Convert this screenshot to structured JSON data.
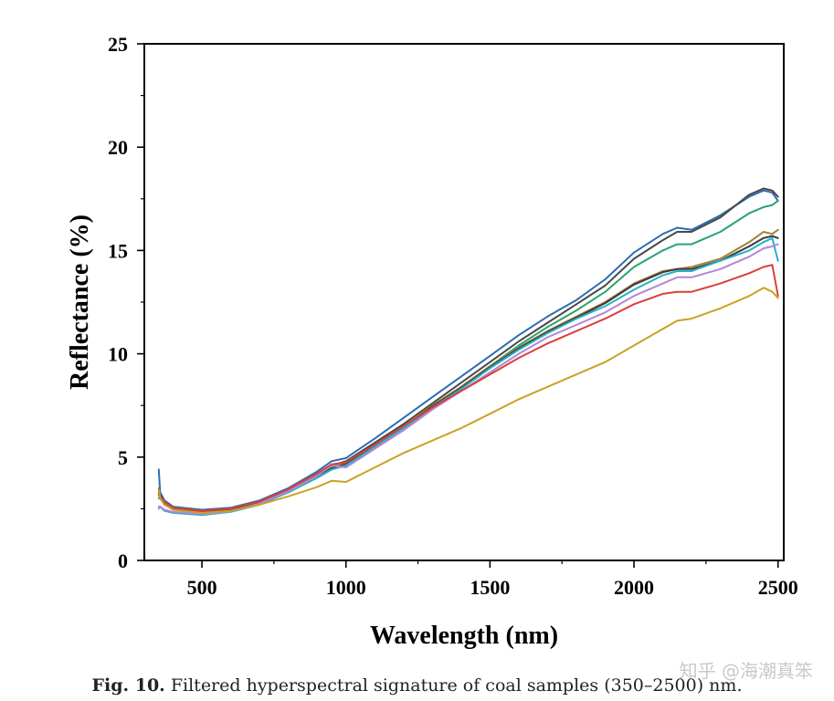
{
  "caption": {
    "label": "Fig. 10.",
    "text": "Filtered hyperspectral signature of coal samples (350–2500) nm."
  },
  "watermark": "知乎 @海潮真笨",
  "chart_data": {
    "type": "line",
    "title": "",
    "xlabel": "Wavelength (nm)",
    "ylabel": "Reflectance (%)",
    "xlim": [
      300,
      2520
    ],
    "ylim": [
      0,
      25
    ],
    "xticks": [
      500,
      1000,
      1500,
      2000,
      2500
    ],
    "yticks": [
      0,
      5,
      10,
      15,
      20,
      25
    ],
    "grid": false,
    "legend": "none",
    "series": [
      {
        "color": "#2a6db5",
        "x": [
          350,
          355,
          370,
          400,
          500,
          600,
          700,
          800,
          900,
          950,
          1000,
          1100,
          1200,
          1300,
          1400,
          1500,
          1600,
          1700,
          1800,
          1900,
          2000,
          2100,
          2150,
          2200,
          2300,
          2400,
          2450,
          2480,
          2500
        ],
        "y": [
          4.4,
          3.3,
          2.9,
          2.6,
          2.45,
          2.55,
          2.9,
          3.5,
          4.3,
          4.8,
          4.95,
          5.9,
          6.9,
          7.9,
          8.9,
          9.9,
          10.9,
          11.8,
          12.6,
          13.6,
          14.9,
          15.8,
          16.1,
          16.0,
          16.7,
          17.6,
          17.9,
          17.8,
          17.4
        ]
      },
      {
        "color": "#4a4a4a",
        "x": [
          350,
          355,
          370,
          400,
          500,
          600,
          700,
          800,
          900,
          950,
          1000,
          1100,
          1200,
          1300,
          1400,
          1500,
          1600,
          1700,
          1800,
          1900,
          2000,
          2100,
          2150,
          2200,
          2300,
          2400,
          2450,
          2480,
          2500
        ],
        "y": [
          3.4,
          3.2,
          2.8,
          2.55,
          2.4,
          2.5,
          2.85,
          3.4,
          4.2,
          4.6,
          4.8,
          5.7,
          6.6,
          7.6,
          8.6,
          9.6,
          10.6,
          11.5,
          12.4,
          13.3,
          14.6,
          15.5,
          15.9,
          15.9,
          16.6,
          17.7,
          18.0,
          17.9,
          17.6
        ]
      },
      {
        "color": "#2aa36f",
        "x": [
          350,
          355,
          370,
          400,
          500,
          600,
          700,
          800,
          900,
          950,
          1000,
          1100,
          1200,
          1300,
          1400,
          1500,
          1600,
          1700,
          1800,
          1900,
          2000,
          2100,
          2150,
          2200,
          2300,
          2400,
          2450,
          2480,
          2500
        ],
        "y": [
          3.0,
          3.0,
          2.7,
          2.5,
          2.35,
          2.45,
          2.8,
          3.3,
          4.0,
          4.4,
          4.6,
          5.5,
          6.4,
          7.4,
          8.4,
          9.4,
          10.4,
          11.3,
          12.1,
          13.0,
          14.2,
          15.0,
          15.3,
          15.3,
          15.9,
          16.8,
          17.1,
          17.2,
          17.4
        ]
      },
      {
        "color": "#a2813a",
        "x": [
          350,
          355,
          370,
          400,
          500,
          600,
          700,
          800,
          900,
          950,
          1000,
          1100,
          1200,
          1300,
          1400,
          1500,
          1600,
          1700,
          1800,
          1900,
          2000,
          2100,
          2150,
          2200,
          2300,
          2400,
          2450,
          2480,
          2500
        ],
        "y": [
          3.5,
          3.1,
          2.8,
          2.55,
          2.4,
          2.5,
          2.85,
          3.4,
          4.1,
          4.5,
          4.7,
          5.6,
          6.5,
          7.5,
          8.4,
          9.4,
          10.3,
          11.1,
          11.8,
          12.5,
          13.4,
          14.0,
          14.1,
          14.2,
          14.6,
          15.4,
          15.9,
          15.8,
          16.0
        ]
      },
      {
        "color": "#3a3a3a",
        "x": [
          350,
          355,
          370,
          400,
          500,
          600,
          700,
          800,
          900,
          950,
          1000,
          1100,
          1200,
          1300,
          1400,
          1500,
          1600,
          1700,
          1800,
          1900,
          2000,
          2100,
          2150,
          2200,
          2300,
          2400,
          2450,
          2480,
          2500
        ],
        "y": [
          3.2,
          3.0,
          2.75,
          2.5,
          2.38,
          2.48,
          2.82,
          3.35,
          4.05,
          4.45,
          4.65,
          5.55,
          6.45,
          7.45,
          8.35,
          9.35,
          10.25,
          11.05,
          11.75,
          12.45,
          13.35,
          13.95,
          14.1,
          14.1,
          14.5,
          15.2,
          15.6,
          15.7,
          15.6
        ]
      },
      {
        "color": "#27b0c8",
        "x": [
          350,
          355,
          370,
          400,
          500,
          600,
          700,
          800,
          900,
          950,
          1000,
          1100,
          1200,
          1300,
          1400,
          1500,
          1600,
          1700,
          1800,
          1900,
          2000,
          2100,
          2150,
          2200,
          2300,
          2400,
          2450,
          2480,
          2500
        ],
        "y": [
          2.6,
          2.6,
          2.4,
          2.3,
          2.2,
          2.35,
          2.7,
          3.3,
          4.0,
          4.4,
          4.6,
          5.5,
          6.4,
          7.4,
          8.3,
          9.3,
          10.2,
          11.0,
          11.7,
          12.3,
          13.1,
          13.8,
          14.0,
          14.0,
          14.5,
          15.0,
          15.4,
          15.6,
          14.5
        ]
      },
      {
        "color": "#b487d6",
        "x": [
          350,
          355,
          370,
          400,
          500,
          600,
          700,
          800,
          900,
          950,
          1000,
          1100,
          1200,
          1300,
          1400,
          1500,
          1600,
          1700,
          1800,
          1900,
          2000,
          2100,
          2150,
          2200,
          2300,
          2400,
          2450,
          2480,
          2500
        ],
        "y": [
          2.5,
          2.6,
          2.45,
          2.35,
          2.25,
          2.38,
          2.75,
          3.35,
          4.1,
          4.6,
          4.5,
          5.4,
          6.3,
          7.3,
          8.2,
          9.1,
          10.0,
          10.8,
          11.4,
          12.0,
          12.8,
          13.4,
          13.7,
          13.7,
          14.1,
          14.7,
          15.1,
          15.2,
          15.3
        ]
      },
      {
        "color": "#d9403b",
        "x": [
          350,
          355,
          370,
          400,
          500,
          600,
          700,
          800,
          900,
          950,
          1000,
          1100,
          1200,
          1300,
          1400,
          1500,
          1600,
          1700,
          1800,
          1900,
          2000,
          2100,
          2150,
          2200,
          2300,
          2400,
          2450,
          2480,
          2500
        ],
        "y": [
          3.3,
          3.1,
          2.8,
          2.55,
          2.4,
          2.5,
          2.85,
          3.45,
          4.2,
          4.65,
          4.75,
          5.6,
          6.5,
          7.4,
          8.2,
          9.0,
          9.8,
          10.5,
          11.1,
          11.7,
          12.4,
          12.9,
          13.0,
          13.0,
          13.4,
          13.9,
          14.2,
          14.3,
          12.8
        ]
      },
      {
        "color": "#c9a227",
        "x": [
          350,
          355,
          370,
          400,
          500,
          600,
          700,
          800,
          900,
          950,
          1000,
          1100,
          1200,
          1300,
          1400,
          1500,
          1600,
          1700,
          1800,
          1900,
          2000,
          2100,
          2150,
          2200,
          2300,
          2400,
          2450,
          2480,
          2500
        ],
        "y": [
          3.4,
          3.0,
          2.7,
          2.45,
          2.3,
          2.4,
          2.7,
          3.1,
          3.55,
          3.85,
          3.8,
          4.5,
          5.2,
          5.8,
          6.4,
          7.1,
          7.8,
          8.4,
          9.0,
          9.6,
          10.4,
          11.2,
          11.6,
          11.7,
          12.2,
          12.8,
          13.2,
          13.0,
          12.7
        ]
      }
    ]
  }
}
